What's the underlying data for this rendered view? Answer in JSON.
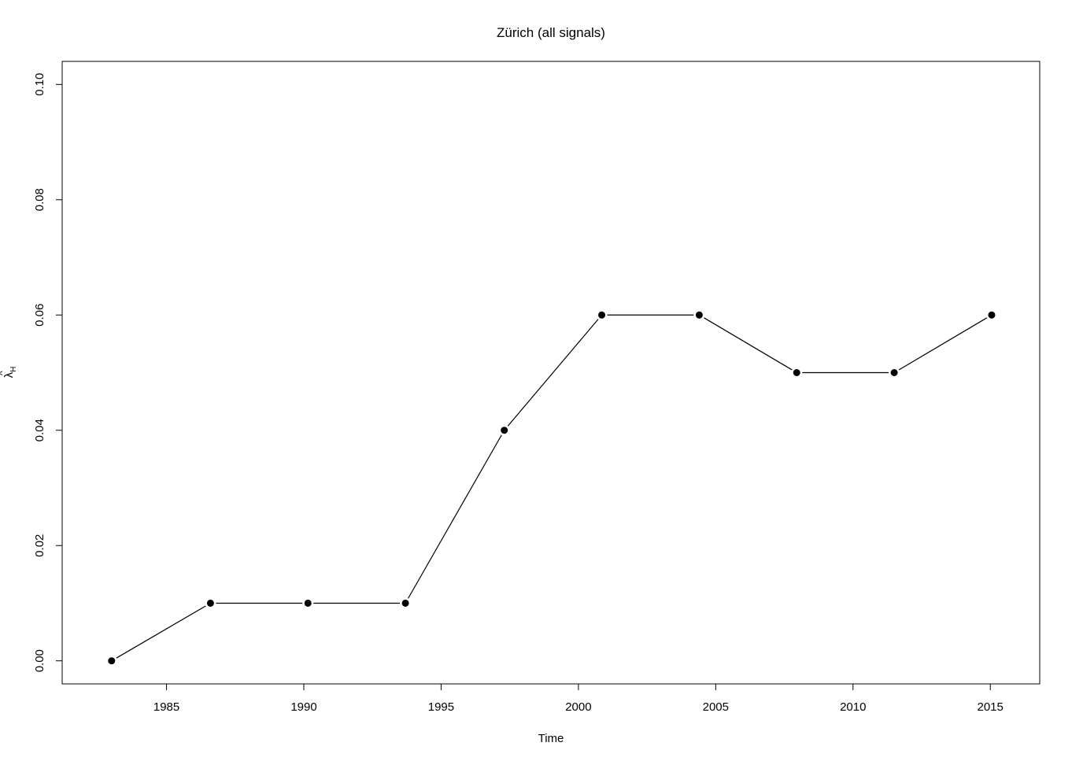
{
  "chart_data": {
    "type": "line",
    "title": "Zürich (all signals)",
    "xlabel": "Time",
    "ylabel_symbol": "λ",
    "ylabel_subscript": "H",
    "xlim": [
      1981.2,
      2016.8
    ],
    "ylim": [
      -0.004,
      0.104
    ],
    "xticks": [
      1985,
      1990,
      1995,
      2000,
      2005,
      2010,
      2015
    ],
    "yticks": [
      "0.00",
      "0.02",
      "0.04",
      "0.06",
      "0.08",
      "0.10"
    ],
    "grid": false,
    "x": [
      1983.0,
      1986.6,
      1990.15,
      1993.7,
      1997.3,
      2000.85,
      2004.4,
      2007.95,
      2011.5,
      2015.05
    ],
    "y": [
      0.0,
      0.01,
      0.01,
      0.01,
      0.04,
      0.06,
      0.06,
      0.05,
      0.05,
      0.06
    ],
    "marker": "filled-circle",
    "line_color": "#000000"
  }
}
